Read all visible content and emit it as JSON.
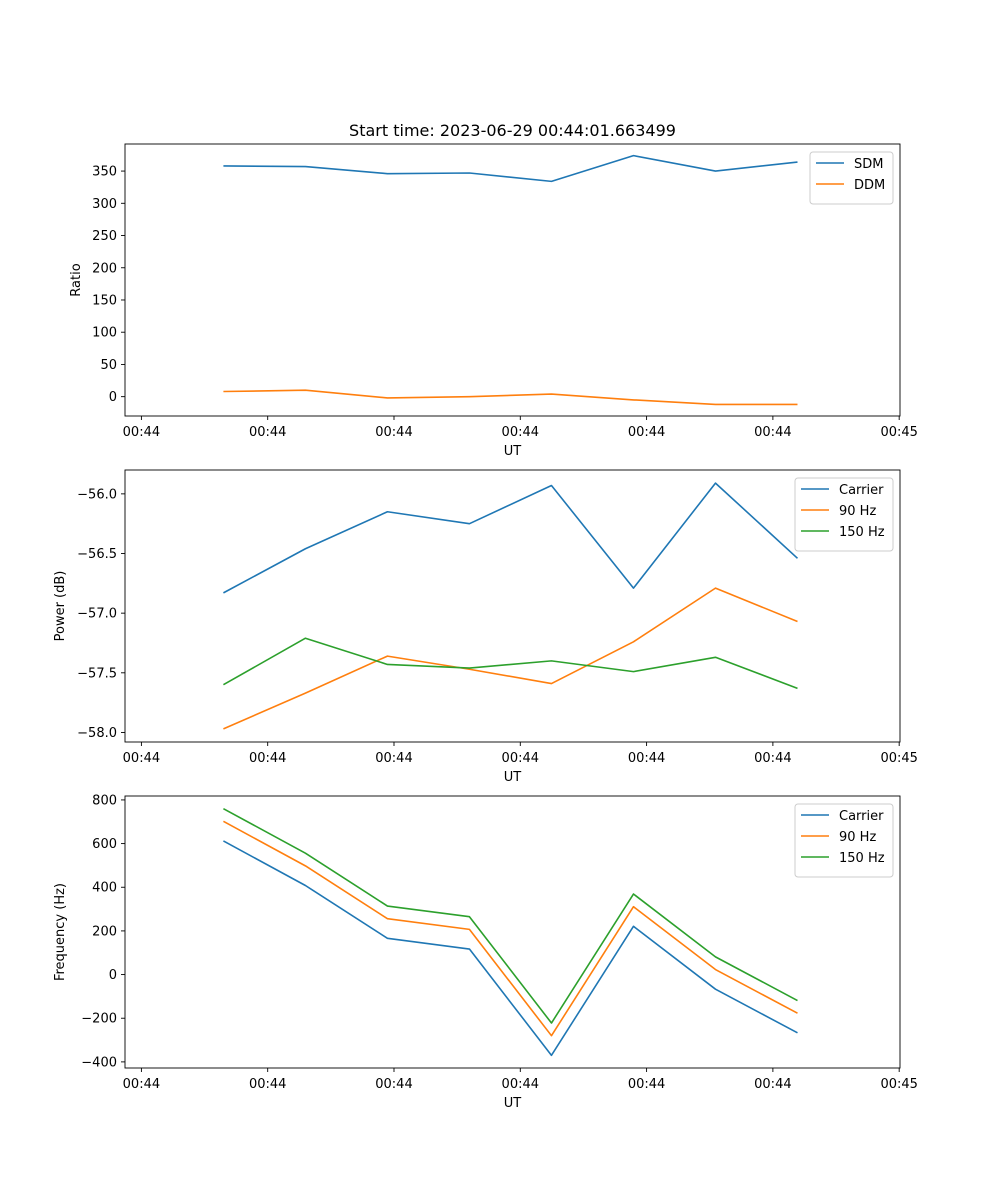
{
  "chart_data": [
    {
      "type": "line",
      "title": "Start time: 2023-06-29 00:44:01.663499",
      "xlabel": "UT",
      "ylabel": "Ratio",
      "x": [
        1.0,
        2.0,
        3.0,
        4.0,
        5.0,
        6.0,
        7.0,
        8.0
      ],
      "x_tick_positions": [
        0,
        1.54,
        3.08,
        4.62,
        6.16,
        7.7,
        9.24
      ],
      "x_tick_labels": [
        "00:44",
        "00:44",
        "00:44",
        "00:44",
        "00:44",
        "00:44",
        "00:45"
      ],
      "xlim": [
        -0.2,
        9.25
      ],
      "ylim": [
        -30,
        392
      ],
      "y_ticks": [
        0,
        50,
        100,
        150,
        200,
        250,
        300,
        350
      ],
      "y_tick_labels": [
        "0",
        "50",
        "100",
        "150",
        "200",
        "250",
        "300",
        "350"
      ],
      "series": [
        {
          "name": "SDM",
          "color": "#1f77b4",
          "values": [
            358,
            357,
            346,
            347,
            334,
            374,
            350,
            364
          ]
        },
        {
          "name": "DDM",
          "color": "#ff7f0e",
          "values": [
            8,
            10,
            -2,
            0,
            4,
            -5,
            -12,
            -12
          ]
        }
      ],
      "legend": "top-right",
      "grid": false
    },
    {
      "type": "line",
      "title": "",
      "xlabel": "UT",
      "ylabel": "Power (dB)",
      "x": [
        1.0,
        2.0,
        3.0,
        4.0,
        5.0,
        6.0,
        7.0,
        8.0
      ],
      "x_tick_positions": [
        0,
        1.54,
        3.08,
        4.62,
        6.16,
        7.7,
        9.24
      ],
      "x_tick_labels": [
        "00:44",
        "00:44",
        "00:44",
        "00:44",
        "00:44",
        "00:44",
        "00:45"
      ],
      "xlim": [
        -0.2,
        9.25
      ],
      "ylim": [
        -58.08,
        -55.8
      ],
      "y_ticks": [
        -58.0,
        -57.5,
        -57.0,
        -56.5,
        -56.0
      ],
      "y_tick_labels": [
        "−58.0",
        "−57.5",
        "−57.0",
        "−56.5",
        "−56.0"
      ],
      "series": [
        {
          "name": "Carrier",
          "color": "#1f77b4",
          "values": [
            -56.83,
            -56.46,
            -56.15,
            -56.25,
            -55.93,
            -56.79,
            -55.91,
            -56.54
          ]
        },
        {
          "name": "90 Hz",
          "color": "#ff7f0e",
          "values": [
            -57.97,
            -57.67,
            -57.36,
            -57.47,
            -57.59,
            -57.24,
            -56.79,
            -57.07
          ]
        },
        {
          "name": "150 Hz",
          "color": "#2ca02c",
          "values": [
            -57.6,
            -57.21,
            -57.43,
            -57.46,
            -57.4,
            -57.49,
            -57.37,
            -57.63
          ]
        }
      ],
      "legend": "top-right",
      "grid": false
    },
    {
      "type": "line",
      "title": "",
      "xlabel": "UT",
      "ylabel": "Frequency (Hz)",
      "x": [
        1.0,
        2.0,
        3.0,
        4.0,
        5.0,
        6.0,
        7.0,
        8.0
      ],
      "x_tick_positions": [
        0,
        1.54,
        3.08,
        4.62,
        6.16,
        7.7,
        9.24
      ],
      "x_tick_labels": [
        "00:44",
        "00:44",
        "00:44",
        "00:44",
        "00:44",
        "00:44",
        "00:45"
      ],
      "xlim": [
        -0.2,
        9.25
      ],
      "ylim": [
        -428,
        818
      ],
      "y_ticks": [
        -400,
        -200,
        0,
        200,
        400,
        600,
        800
      ],
      "y_tick_labels": [
        "−400",
        "−200",
        "0",
        "200",
        "400",
        "600",
        "800"
      ],
      "series": [
        {
          "name": "Carrier",
          "color": "#1f77b4",
          "values": [
            612,
            408,
            166,
            117,
            -370,
            221,
            -67,
            -267
          ]
        },
        {
          "name": "90 Hz",
          "color": "#ff7f0e",
          "values": [
            702,
            498,
            256,
            207,
            -280,
            311,
            23,
            -177
          ]
        },
        {
          "name": "150 Hz",
          "color": "#2ca02c",
          "values": [
            760,
            556,
            314,
            265,
            -222,
            369,
            81,
            -119
          ]
        }
      ],
      "legend": "top-right",
      "grid": false
    }
  ]
}
